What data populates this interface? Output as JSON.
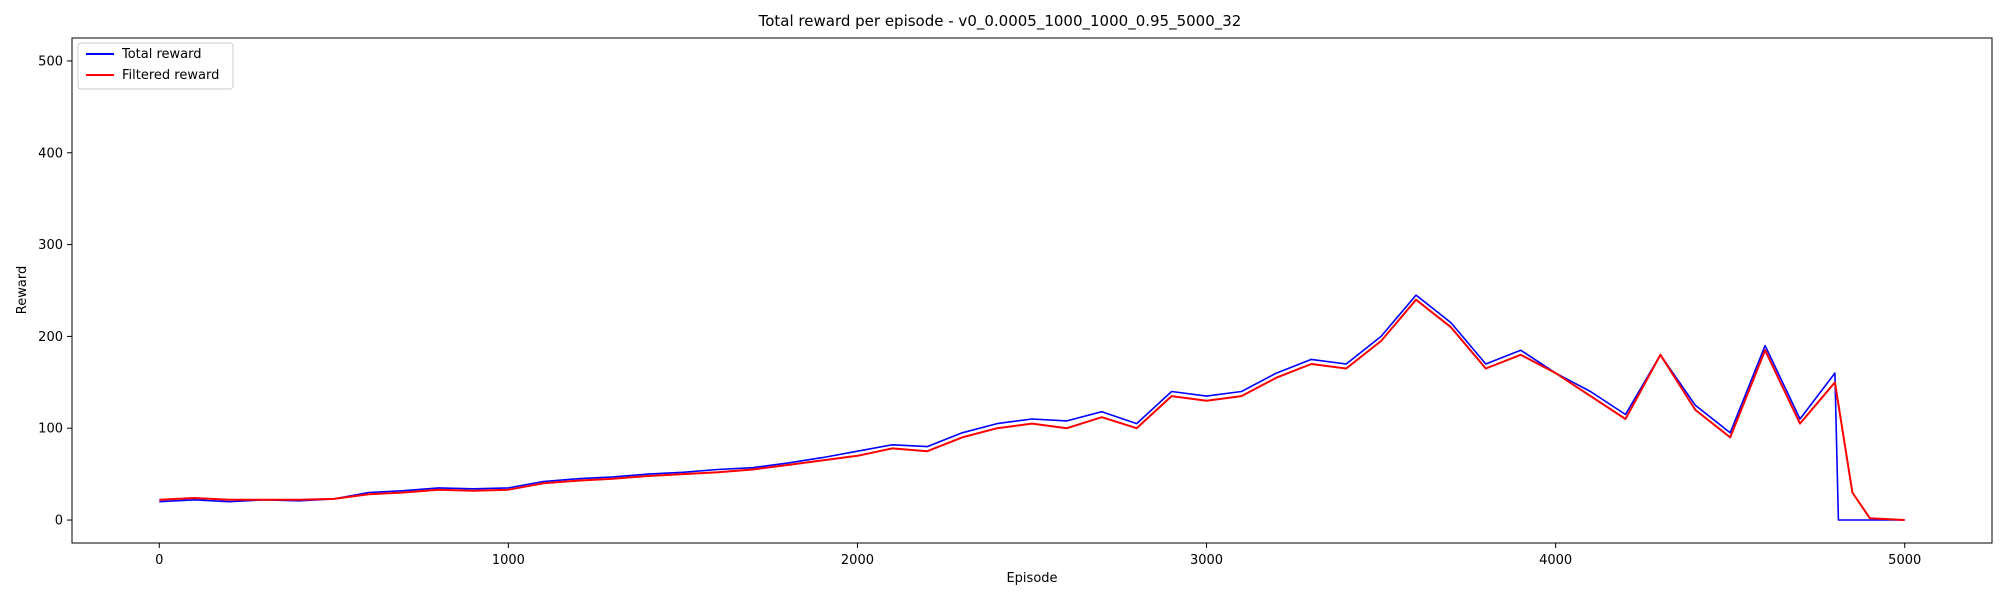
{
  "chart_data": {
    "type": "line",
    "title": "Total reward per episode - v0_0.0005_1000_1000_0.95_5000_32",
    "xlabel": "Episode",
    "ylabel": "Reward",
    "xlim": [
      -250,
      5250
    ],
    "ylim": [
      -25,
      525
    ],
    "xticks": [
      0,
      1000,
      2000,
      3000,
      4000,
      5000
    ],
    "yticks": [
      0,
      100,
      200,
      300,
      400,
      500
    ],
    "grid": false,
    "legend_position": "top-left",
    "series": [
      {
        "name": "Total reward",
        "color": "#0000ff",
        "x": [
          0,
          100,
          200,
          300,
          400,
          500,
          600,
          700,
          800,
          900,
          1000,
          1100,
          1200,
          1300,
          1400,
          1500,
          1600,
          1700,
          1800,
          1900,
          2000,
          2100,
          2200,
          2300,
          2400,
          2500,
          2600,
          2700,
          2800,
          2900,
          3000,
          3100,
          3200,
          3300,
          3400,
          3500,
          3600,
          3700,
          3800,
          3900,
          4000,
          4100,
          4200,
          4300,
          4400,
          4500,
          4600,
          4700,
          4800,
          4810,
          4900,
          5000
        ],
        "y": [
          20,
          22,
          20,
          22,
          21,
          23,
          30,
          32,
          35,
          34,
          35,
          42,
          45,
          47,
          50,
          52,
          55,
          57,
          62,
          68,
          75,
          82,
          80,
          95,
          105,
          110,
          108,
          118,
          105,
          140,
          135,
          140,
          160,
          175,
          170,
          200,
          245,
          215,
          170,
          185,
          160,
          140,
          115,
          180,
          125,
          95,
          190,
          110,
          160,
          0,
          0,
          0
        ]
      },
      {
        "name": "Filtered reward",
        "color": "#ff0000",
        "x": [
          0,
          100,
          200,
          300,
          400,
          500,
          600,
          700,
          800,
          900,
          1000,
          1100,
          1200,
          1300,
          1400,
          1500,
          1600,
          1700,
          1800,
          1900,
          2000,
          2100,
          2200,
          2300,
          2400,
          2500,
          2600,
          2700,
          2800,
          2900,
          3000,
          3100,
          3200,
          3300,
          3400,
          3500,
          3600,
          3700,
          3800,
          3900,
          4000,
          4100,
          4200,
          4300,
          4400,
          4500,
          4600,
          4700,
          4800,
          4850,
          4900,
          5000
        ],
        "y": [
          22,
          24,
          22,
          22,
          22,
          23,
          28,
          30,
          33,
          32,
          33,
          40,
          43,
          45,
          48,
          50,
          52,
          55,
          60,
          65,
          70,
          78,
          75,
          90,
          100,
          105,
          100,
          112,
          100,
          135,
          130,
          135,
          155,
          170,
          165,
          195,
          240,
          210,
          165,
          180,
          160,
          135,
          110,
          180,
          120,
          90,
          185,
          105,
          150,
          30,
          2,
          0
        ]
      }
    ]
  }
}
